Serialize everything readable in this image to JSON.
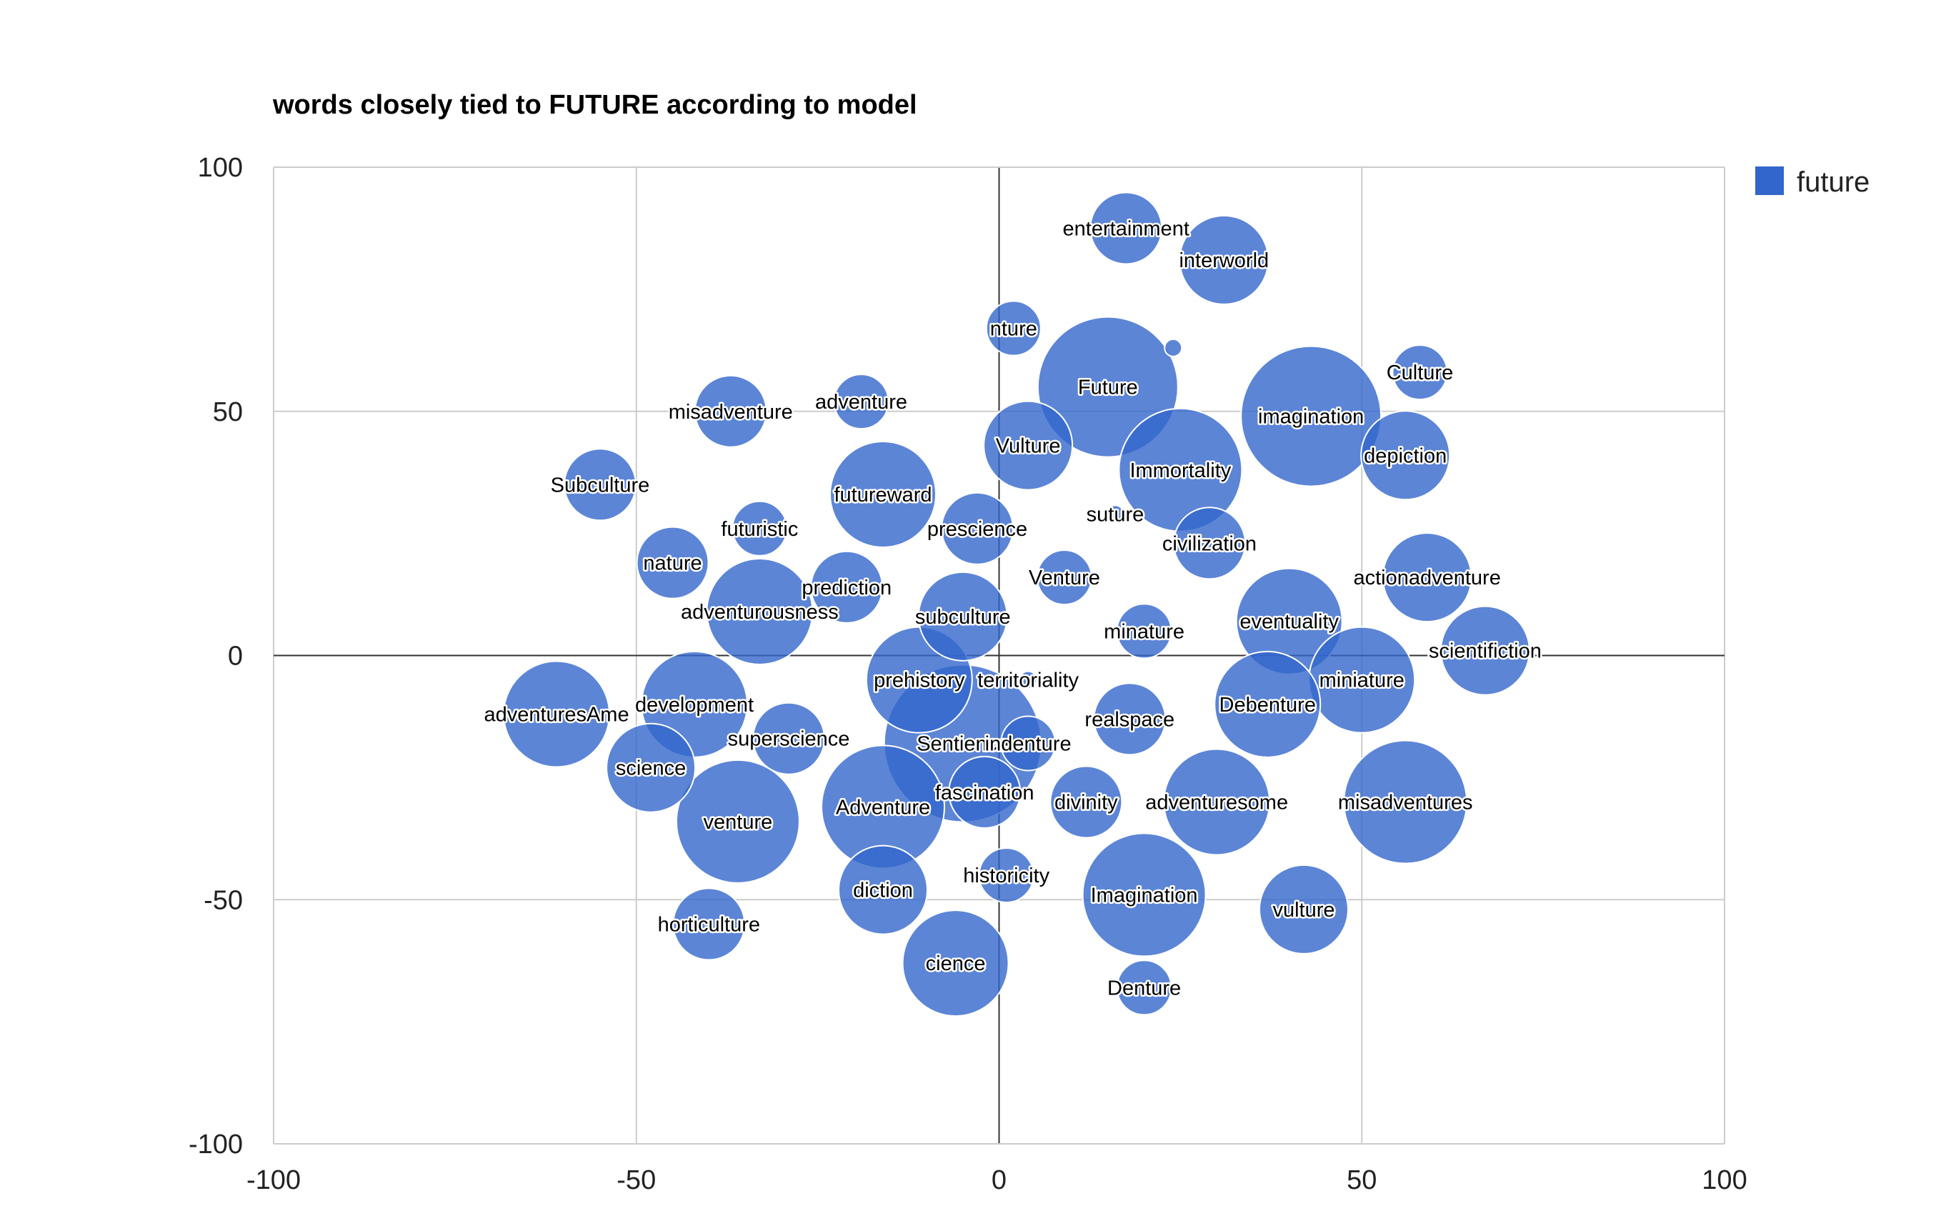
{
  "chart_data": {
    "type": "scatter",
    "title": "words closely tied to FUTURE according to model",
    "xlabel": "",
    "ylabel": "",
    "xlim": [
      -100,
      100
    ],
    "ylim": [
      -100,
      100
    ],
    "x_ticks": [
      -100,
      -50,
      0,
      50,
      100
    ],
    "y_ticks": [
      100,
      50,
      0,
      -50,
      -100
    ],
    "x_tick_labels": [
      "-100",
      "-50",
      "0",
      "50",
      "100"
    ],
    "y_tick_labels": [
      "100",
      "50",
      "0",
      "-50",
      "-100"
    ],
    "grid": true,
    "legend": {
      "position": "right",
      "label": "future",
      "color": "#3366cc"
    },
    "series": [
      {
        "name": "future",
        "color": "#3366cc",
        "points": [
          {
            "label": "entertainment",
            "x": 17.5,
            "y": 87.5,
            "size": 2
          },
          {
            "label": "interworld",
            "x": 31,
            "y": 81,
            "size": 3
          },
          {
            "label": "nture",
            "x": 2,
            "y": 67,
            "size": 1
          },
          {
            "label": "",
            "x": 24,
            "y": 63,
            "size": 0
          },
          {
            "label": "Future",
            "x": 15,
            "y": 55,
            "size": 6
          },
          {
            "label": "Culture",
            "x": 58,
            "y": 58,
            "size": 1
          },
          {
            "label": "imagination",
            "x": 43,
            "y": 49,
            "size": 6
          },
          {
            "label": "misadventure",
            "x": -37,
            "y": 50,
            "size": 2
          },
          {
            "label": "adventure",
            "x": -19,
            "y": 52,
            "size": 1
          },
          {
            "label": "Vulture",
            "x": 4,
            "y": 43,
            "size": 3
          },
          {
            "label": "depiction",
            "x": 56,
            "y": 41,
            "size": 3
          },
          {
            "label": "Immortality",
            "x": 25,
            "y": 38,
            "size": 5
          },
          {
            "label": "Subculture",
            "x": -55,
            "y": 35,
            "size": 2
          },
          {
            "label": "futureward",
            "x": -16,
            "y": 33,
            "size": 4
          },
          {
            "label": "suture",
            "x": 16,
            "y": 29,
            "size": 0
          },
          {
            "label": "prescience",
            "x": -3,
            "y": 26,
            "size": 2
          },
          {
            "label": "futuristic",
            "x": -33,
            "y": 26,
            "size": 1
          },
          {
            "label": "civilization",
            "x": 29,
            "y": 23,
            "size": 2
          },
          {
            "label": "nature",
            "x": -45,
            "y": 19,
            "size": 2
          },
          {
            "label": "prediction",
            "x": -21,
            "y": 14,
            "size": 2
          },
          {
            "label": "Venture",
            "x": 9,
            "y": 16,
            "size": 1
          },
          {
            "label": "actionadventure",
            "x": 59,
            "y": 16,
            "size": 3
          },
          {
            "label": "adventurousness",
            "x": -33,
            "y": 9,
            "size": 4
          },
          {
            "label": "subculture",
            "x": -5,
            "y": 8,
            "size": 3
          },
          {
            "label": "eventuality",
            "x": 40,
            "y": 7,
            "size": 4
          },
          {
            "label": "minature",
            "x": 20,
            "y": 5,
            "size": 1
          },
          {
            "label": "scientifiction",
            "x": 67,
            "y": 1,
            "size": 3
          },
          {
            "label": "miniature",
            "x": 50,
            "y": -5,
            "size": 4
          },
          {
            "label": "prehistory",
            "x": -11,
            "y": -5,
            "size": 4
          },
          {
            "label": "territoriality",
            "x": 4,
            "y": -5,
            "size": 0
          },
          {
            "label": "development",
            "x": -42,
            "y": -10,
            "size": 4
          },
          {
            "label": "Debenture",
            "x": 37,
            "y": -10,
            "size": 4
          },
          {
            "label": "adventuresAme",
            "x": -61,
            "y": -12,
            "size": 4
          },
          {
            "label": "realspace",
            "x": 18,
            "y": -13,
            "size": 2
          },
          {
            "label": "superscience",
            "x": -29,
            "y": -17,
            "size": 2
          },
          {
            "label": "Sentience",
            "x": -5,
            "y": -18,
            "size": 7
          },
          {
            "label": "indenture",
            "x": 4,
            "y": -18,
            "size": 1
          },
          {
            "label": "science",
            "x": -48,
            "y": -23,
            "size": 3
          },
          {
            "label": "fascination",
            "x": -2,
            "y": -28,
            "size": 2
          },
          {
            "label": "divinity",
            "x": 12,
            "y": -30,
            "size": 2
          },
          {
            "label": "adventuresome",
            "x": 30,
            "y": -30,
            "size": 4
          },
          {
            "label": "misadventures",
            "x": 56,
            "y": -30,
            "size": 5
          },
          {
            "label": "Adventure",
            "x": -16,
            "y": -31,
            "size": 5
          },
          {
            "label": "venture",
            "x": -36,
            "y": -34,
            "size": 5
          },
          {
            "label": "historicity",
            "x": 1,
            "y": -45,
            "size": 1
          },
          {
            "label": "diction",
            "x": -16,
            "y": -48,
            "size": 3
          },
          {
            "label": "Imagination",
            "x": 20,
            "y": -49,
            "size": 5
          },
          {
            "label": "vulture",
            "x": 42,
            "y": -52,
            "size": 3
          },
          {
            "label": "horticulture",
            "x": -40,
            "y": -55,
            "size": 2
          },
          {
            "label": "cience",
            "x": -6,
            "y": -63,
            "size": 4
          },
          {
            "label": "Denture",
            "x": 20,
            "y": -68,
            "size": 1
          }
        ]
      }
    ]
  }
}
